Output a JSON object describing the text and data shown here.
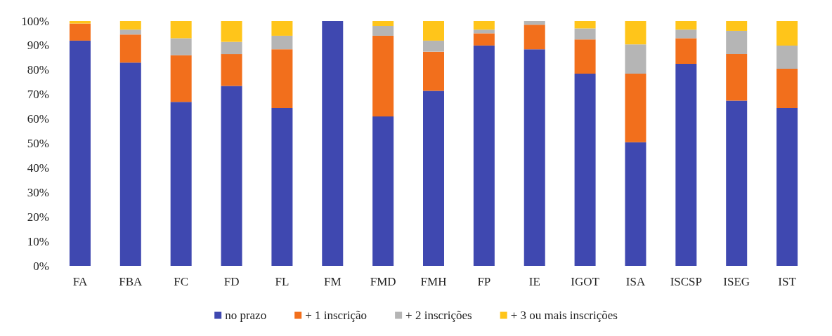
{
  "chart_data": {
    "type": "bar",
    "stacked": true,
    "categories": [
      "FA",
      "FBA",
      "FC",
      "FD",
      "FL",
      "FM",
      "FMD",
      "FMH",
      "FP",
      "IE",
      "IGOT",
      "ISA",
      "ISCSP",
      "ISEG",
      "IST"
    ],
    "series": [
      {
        "name": "no prazo",
        "color": "#3f48b0",
        "values": [
          92,
          83,
          67,
          73.5,
          64.5,
          100,
          61,
          71.5,
          90,
          88.5,
          78.5,
          50.5,
          82.5,
          67.5,
          64.5
        ]
      },
      {
        "name": "+ 1 inscrição",
        "color": "#f26f1c",
        "values": [
          7,
          11.5,
          19,
          13,
          24,
          0,
          33,
          16,
          5,
          10,
          14,
          28,
          10.5,
          19,
          16
        ]
      },
      {
        "name": "+ 2 inscrições",
        "color": "#b5b5b5",
        "values": [
          0,
          2,
          7,
          5,
          5.5,
          0,
          4,
          4.5,
          1.5,
          1.5,
          4.5,
          12,
          3.5,
          9.5,
          9.5
        ]
      },
      {
        "name": "+ 3 ou mais inscrições",
        "color": "#ffc51a",
        "values": [
          1,
          3.5,
          7,
          8.5,
          6,
          0,
          2,
          8,
          3.5,
          0,
          3,
          9.5,
          3.5,
          4,
          10
        ]
      }
    ],
    "ylim": [
      0,
      100
    ],
    "yticks": [
      {
        "value": 0,
        "label": "0%"
      },
      {
        "value": 10,
        "label": "10%"
      },
      {
        "value": 20,
        "label": "20%"
      },
      {
        "value": 30,
        "label": "30%"
      },
      {
        "value": 40,
        "label": "40%"
      },
      {
        "value": 50,
        "label": "50%"
      },
      {
        "value": 60,
        "label": "60%"
      },
      {
        "value": 70,
        "label": "70%"
      },
      {
        "value": 80,
        "label": "80%"
      },
      {
        "value": 90,
        "label": "90%"
      },
      {
        "value": 100,
        "label": "100%"
      }
    ],
    "grid": false,
    "legend": "bottom"
  }
}
